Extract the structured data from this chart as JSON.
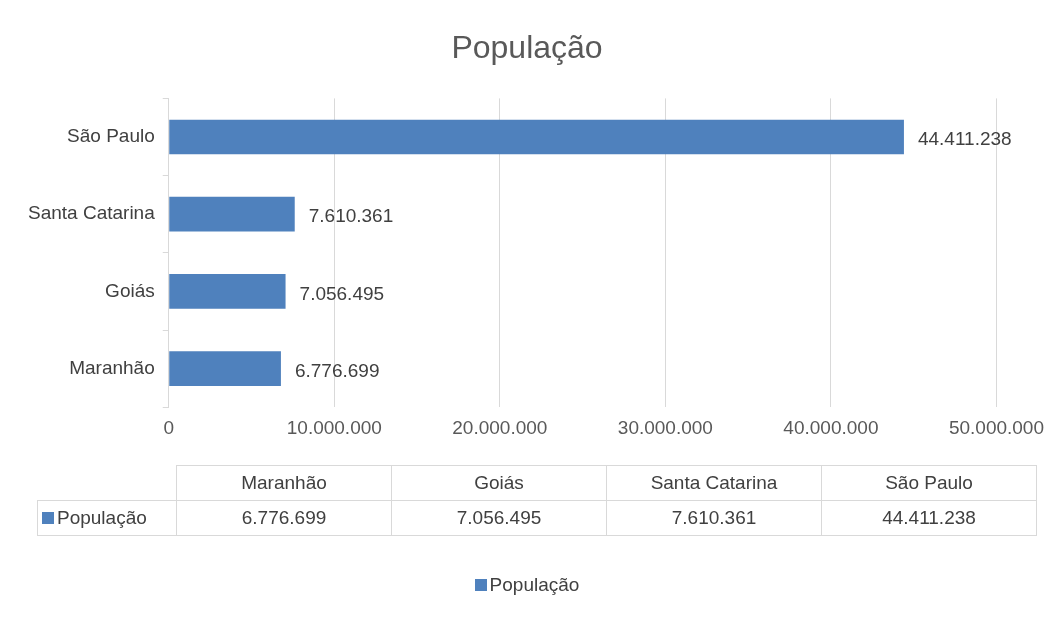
{
  "chart_data": {
    "type": "bar",
    "orientation": "horizontal",
    "title": "População",
    "categories": [
      "São Paulo",
      "Santa Catarina",
      "Goiás",
      "Maranhão"
    ],
    "series": [
      {
        "name": "População",
        "color": "#4f81bd",
        "values": [
          44411238,
          7610361,
          7056495,
          6776699
        ],
        "value_labels": [
          "44.411.238",
          "7.610.361",
          "7.056.495",
          "6.776.699"
        ]
      }
    ],
    "xlim": [
      0,
      50000000
    ],
    "xticks": [
      0,
      {
        "value": 10000000,
        "label": "10.000.000"
      },
      {
        "value": 20000000,
        "label": "20.000.000"
      },
      {
        "value": 30000000,
        "label": "30.000.000"
      },
      {
        "value": 40000000,
        "label": "40.000.000"
      },
      {
        "value": 50000000,
        "label": "50.000.000"
      }
    ],
    "grid": "x",
    "legend": "bottom"
  }
}
